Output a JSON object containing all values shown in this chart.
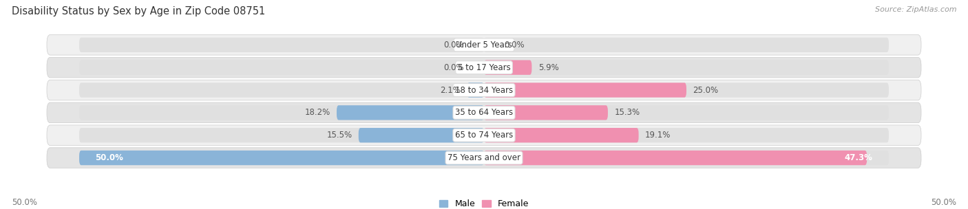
{
  "title": "Disability Status by Sex by Age in Zip Code 08751",
  "source": "Source: ZipAtlas.com",
  "categories": [
    "Under 5 Years",
    "5 to 17 Years",
    "18 to 34 Years",
    "35 to 64 Years",
    "65 to 74 Years",
    "75 Years and over"
  ],
  "male_values": [
    0.0,
    0.0,
    2.1,
    18.2,
    15.5,
    50.0
  ],
  "female_values": [
    0.0,
    5.9,
    25.0,
    15.3,
    19.1,
    47.3
  ],
  "male_color": "#8ab4d8",
  "female_color": "#f090b0",
  "row_bg_color_even": "#f0f0f0",
  "row_bg_color_odd": "#e4e4e4",
  "track_color": "#e0e0e0",
  "max_value": 50.0,
  "axis_label_left": "50.0%",
  "axis_label_right": "50.0%",
  "title_fontsize": 10.5,
  "label_fontsize": 8.5,
  "category_fontsize": 8.5,
  "legend_fontsize": 9,
  "source_fontsize": 8
}
